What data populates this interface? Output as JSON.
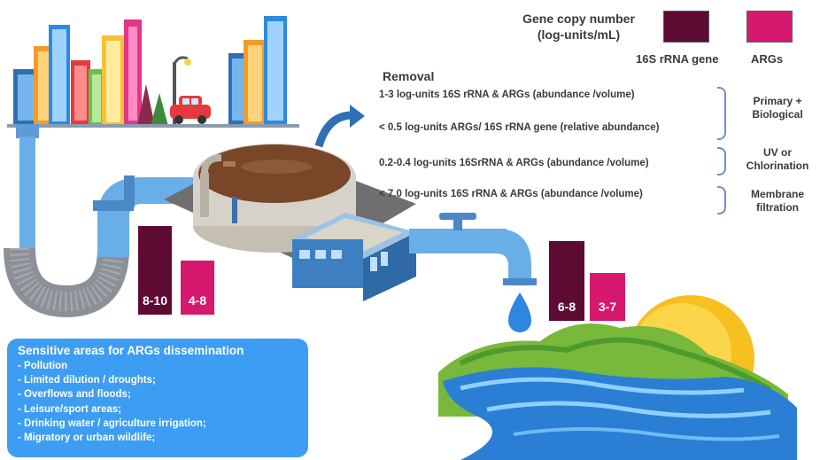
{
  "legend": {
    "title_line1": "Gene copy number",
    "title_line2": "(log-units/mL)",
    "items": [
      {
        "label": "16S rRNA gene",
        "color": "#5e0b33"
      },
      {
        "label": "ARGs",
        "color": "#d6186f"
      }
    ]
  },
  "removal": {
    "heading": "Removal",
    "rows": [
      "1-3 log-units 16S rRNA & ARGs (abundance /volume)",
      "< 0.5 log-units ARGs/ 16S rRNA gene (relative abundance)",
      "0.2-0.4 log-units 16SrRNA & ARGs (abundance /volume)",
      "< 7.0 log-units 16S rRNA & ARGs (abundance /volume)"
    ],
    "treatments": [
      {
        "line1": "Primary +",
        "line2": "Biological"
      },
      {
        "line1": "UV or",
        "line2": "Chlorination"
      },
      {
        "line1": "Membrane",
        "line2": "filtration"
      }
    ]
  },
  "bars": {
    "influent": {
      "rrna": "8-10",
      "args": "4-8"
    },
    "effluent": {
      "rrna": "6-8",
      "args": "3-7"
    }
  },
  "sensitive": {
    "title": "Sensitive areas for ARGs dissemination",
    "items": [
      "- Pollution",
      "- Limited dilution / droughts;",
      "- Overflows and floods;",
      "- Leisure/sport areas;",
      "- Drinking water / agriculture irrigation;",
      "- Migratory or urban wildlife;"
    ]
  },
  "colors": {
    "rrna": "#5e0b33",
    "args": "#d6186f",
    "water": "#3d9df3",
    "pipe": "#6aaee8"
  },
  "icons": [
    "city-icon",
    "car-icon",
    "street-lamp-icon",
    "pipe-icon",
    "treatment-tank-icon",
    "building-icon",
    "tap-icon",
    "water-drop-icon",
    "river-icon",
    "sun-icon",
    "arrow-icon"
  ]
}
